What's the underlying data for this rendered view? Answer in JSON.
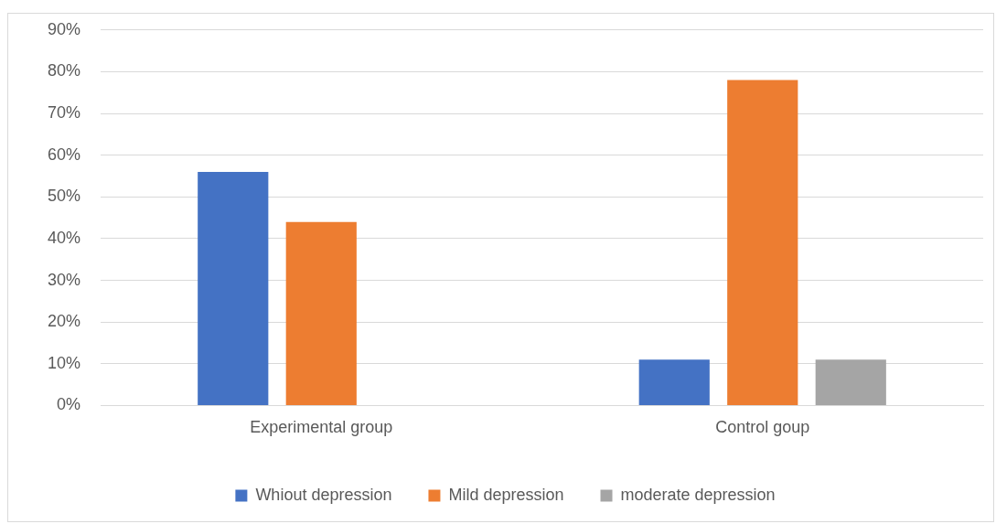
{
  "chart_data": {
    "type": "bar",
    "categories": [
      "Experimental group",
      "Control goup"
    ],
    "series": [
      {
        "name": "Whiout depression",
        "color": "#4472c4",
        "values": [
          56,
          11
        ]
      },
      {
        "name": "Mild depression",
        "color": "#ed7d31",
        "values": [
          44,
          78
        ]
      },
      {
        "name": "moderate depression",
        "color": "#a5a5a5",
        "values": [
          null,
          11
        ]
      }
    ],
    "ylim": [
      0,
      90
    ],
    "yticks": [
      {
        "value": 0,
        "label": "0%"
      },
      {
        "value": 10,
        "label": "10%"
      },
      {
        "value": 20,
        "label": "20%"
      },
      {
        "value": 30,
        "label": "30%"
      },
      {
        "value": 40,
        "label": "40%"
      },
      {
        "value": 50,
        "label": "50%"
      },
      {
        "value": 60,
        "label": "60%"
      },
      {
        "value": 70,
        "label": "70%"
      },
      {
        "value": 80,
        "label": "80%"
      },
      {
        "value": 90,
        "label": "90%"
      }
    ],
    "grid": "y",
    "legend": "bottom"
  }
}
